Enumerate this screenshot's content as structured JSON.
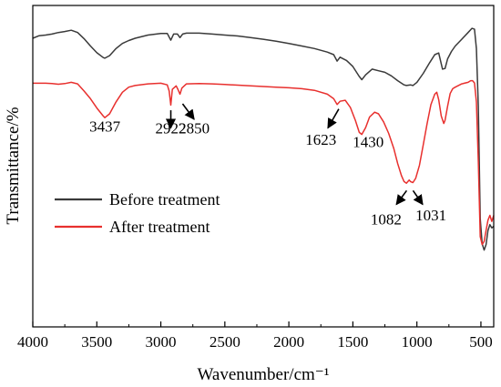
{
  "chart_data": {
    "type": "line",
    "xlabel": "Wavenumber/cm⁻¹",
    "ylabel": "Transmittance/%",
    "xlim": [
      4000,
      400
    ],
    "x_reversed": true,
    "xticks": [
      4000,
      3500,
      3000,
      2500,
      2000,
      1500,
      1000,
      500
    ],
    "ylim": [
      0,
      100
    ],
    "yticks_shown": false,
    "grid": false,
    "legend": {
      "placement": "middle-left"
    },
    "series": [
      {
        "name": "Before treatment",
        "color": "#3a3a3a",
        "points": [
          [
            4000,
            89.8
          ],
          [
            3950,
            90.6
          ],
          [
            3900,
            90.8
          ],
          [
            3850,
            91.1
          ],
          [
            3800,
            91.6
          ],
          [
            3750,
            91.9
          ],
          [
            3700,
            92.3
          ],
          [
            3650,
            91.6
          ],
          [
            3600,
            89.7
          ],
          [
            3550,
            87.4
          ],
          [
            3500,
            85.3
          ],
          [
            3450,
            83.8
          ],
          [
            3437,
            83.6
          ],
          [
            3400,
            84.4
          ],
          [
            3350,
            86.6
          ],
          [
            3300,
            88.2
          ],
          [
            3250,
            89.1
          ],
          [
            3200,
            89.8
          ],
          [
            3100,
            90.8
          ],
          [
            3000,
            91.3
          ],
          [
            2950,
            91.3
          ],
          [
            2922,
            89.2
          ],
          [
            2900,
            91.1
          ],
          [
            2870,
            91.1
          ],
          [
            2850,
            90.0
          ],
          [
            2830,
            91.1
          ],
          [
            2800,
            91.4
          ],
          [
            2700,
            91.4
          ],
          [
            2600,
            91.1
          ],
          [
            2500,
            90.8
          ],
          [
            2400,
            90.5
          ],
          [
            2300,
            90.0
          ],
          [
            2200,
            89.5
          ],
          [
            2100,
            88.9
          ],
          [
            2000,
            88.2
          ],
          [
            1900,
            87.4
          ],
          [
            1800,
            86.6
          ],
          [
            1700,
            85.5
          ],
          [
            1650,
            84.7
          ],
          [
            1623,
            82.7
          ],
          [
            1600,
            83.9
          ],
          [
            1550,
            82.9
          ],
          [
            1500,
            81.0
          ],
          [
            1450,
            77.9
          ],
          [
            1430,
            76.9
          ],
          [
            1400,
            78.4
          ],
          [
            1350,
            80.2
          ],
          [
            1300,
            79.7
          ],
          [
            1250,
            79.2
          ],
          [
            1200,
            78.1
          ],
          [
            1150,
            76.6
          ],
          [
            1100,
            75.3
          ],
          [
            1082,
            75.1
          ],
          [
            1050,
            75.3
          ],
          [
            1031,
            75.1
          ],
          [
            1000,
            76.1
          ],
          [
            950,
            78.9
          ],
          [
            900,
            82.2
          ],
          [
            860,
            84.7
          ],
          [
            830,
            85.2
          ],
          [
            800,
            80.2
          ],
          [
            780,
            80.4
          ],
          [
            760,
            83.4
          ],
          [
            730,
            85.7
          ],
          [
            700,
            87.4
          ],
          [
            650,
            89.5
          ],
          [
            600,
            91.6
          ],
          [
            570,
            92.9
          ],
          [
            550,
            92.6
          ],
          [
            535,
            86.6
          ],
          [
            520,
            68.7
          ],
          [
            505,
            33.7
          ],
          [
            490,
            25.9
          ],
          [
            475,
            23.9
          ],
          [
            460,
            25.6
          ],
          [
            445,
            30.0
          ],
          [
            430,
            31.8
          ],
          [
            415,
            30.8
          ],
          [
            400,
            31.3
          ]
        ]
      },
      {
        "name": "After treatment",
        "color": "#e8302e",
        "points": [
          [
            4000,
            75.8
          ],
          [
            3950,
            75.8
          ],
          [
            3900,
            75.8
          ],
          [
            3850,
            75.7
          ],
          [
            3800,
            75.5
          ],
          [
            3750,
            75.7
          ],
          [
            3700,
            76.1
          ],
          [
            3650,
            75.6
          ],
          [
            3600,
            73.4
          ],
          [
            3550,
            71.0
          ],
          [
            3500,
            68.1
          ],
          [
            3450,
            65.6
          ],
          [
            3437,
            65.1
          ],
          [
            3400,
            66.3
          ],
          [
            3350,
            70.0
          ],
          [
            3300,
            73.0
          ],
          [
            3250,
            74.6
          ],
          [
            3200,
            75.1
          ],
          [
            3100,
            75.6
          ],
          [
            3000,
            75.8
          ],
          [
            2950,
            75.3
          ],
          [
            2935,
            73.4
          ],
          [
            2922,
            69.0
          ],
          [
            2910,
            73.9
          ],
          [
            2880,
            75.0
          ],
          [
            2865,
            73.8
          ],
          [
            2850,
            72.4
          ],
          [
            2835,
            74.3
          ],
          [
            2800,
            75.6
          ],
          [
            2700,
            75.7
          ],
          [
            2600,
            75.6
          ],
          [
            2500,
            75.4
          ],
          [
            2400,
            75.2
          ],
          [
            2300,
            75.0
          ],
          [
            2200,
            74.8
          ],
          [
            2100,
            74.6
          ],
          [
            2000,
            74.4
          ],
          [
            1900,
            74.1
          ],
          [
            1800,
            73.6
          ],
          [
            1700,
            72.4
          ],
          [
            1650,
            71.0
          ],
          [
            1623,
            69.2
          ],
          [
            1600,
            70.2
          ],
          [
            1560,
            70.5
          ],
          [
            1520,
            68.3
          ],
          [
            1480,
            64.2
          ],
          [
            1450,
            60.5
          ],
          [
            1430,
            59.9
          ],
          [
            1400,
            62.0
          ],
          [
            1370,
            65.3
          ],
          [
            1330,
            66.8
          ],
          [
            1300,
            66.3
          ],
          [
            1260,
            63.8
          ],
          [
            1220,
            60.2
          ],
          [
            1180,
            55.4
          ],
          [
            1150,
            50.8
          ],
          [
            1120,
            47.0
          ],
          [
            1100,
            45.2
          ],
          [
            1082,
            44.7
          ],
          [
            1060,
            45.7
          ],
          [
            1050,
            45.2
          ],
          [
            1031,
            44.9
          ],
          [
            1010,
            46.2
          ],
          [
            980,
            50.3
          ],
          [
            950,
            56.7
          ],
          [
            920,
            63.3
          ],
          [
            890,
            69.2
          ],
          [
            860,
            72.4
          ],
          [
            845,
            73.0
          ],
          [
            830,
            70.7
          ],
          [
            810,
            65.6
          ],
          [
            790,
            63.3
          ],
          [
            780,
            64.3
          ],
          [
            760,
            68.7
          ],
          [
            740,
            72.6
          ],
          [
            720,
            74.1
          ],
          [
            700,
            74.6
          ],
          [
            650,
            75.6
          ],
          [
            600,
            76.1
          ],
          [
            580,
            76.6
          ],
          [
            565,
            76.6
          ],
          [
            550,
            75.9
          ],
          [
            535,
            70.0
          ],
          [
            520,
            51.4
          ],
          [
            505,
            28.1
          ],
          [
            490,
            25.6
          ],
          [
            475,
            26.6
          ],
          [
            460,
            30.0
          ],
          [
            445,
            33.2
          ],
          [
            430,
            34.7
          ],
          [
            415,
            32.8
          ],
          [
            400,
            34.7
          ]
        ]
      }
    ],
    "annotations": [
      {
        "label": "3437",
        "x": 3437,
        "y": 60.8,
        "arrow": false
      },
      {
        "label": "2922",
        "x": 2922,
        "y": 60.2,
        "arrow": true,
        "arrow_from": [
          2922,
          67.4
        ],
        "arrow_to": [
          2922,
          61.9
        ]
      },
      {
        "label": "2850",
        "x": 2740,
        "y": 60.2,
        "arrow": true,
        "arrow_from": [
          2830,
          69.4
        ],
        "arrow_to": [
          2740,
          64.6
        ]
      },
      {
        "label": "1623",
        "x": 1750,
        "y": 56.7,
        "arrow": true,
        "arrow_from": [
          1610,
          67.8
        ],
        "arrow_to": [
          1695,
          61.9
        ]
      },
      {
        "label": "1430",
        "x": 1380,
        "y": 55.9,
        "arrow": false
      },
      {
        "label": "1082",
        "x": 1240,
        "y": 31.8,
        "arrow": true,
        "arrow_from": [
          1080,
          42.4
        ],
        "arrow_to": [
          1160,
          38.1
        ]
      },
      {
        "label": "1031",
        "x": 890,
        "y": 33.2,
        "arrow": true,
        "arrow_from": [
          1030,
          42.4
        ],
        "arrow_to": [
          955,
          38.1
        ]
      }
    ]
  }
}
